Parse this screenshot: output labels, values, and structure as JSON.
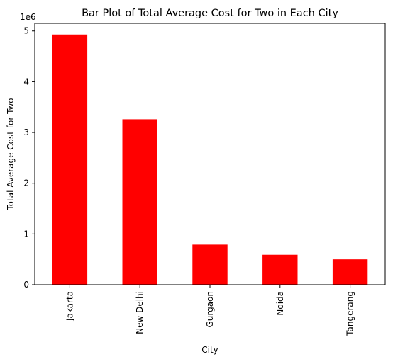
{
  "chart_data": {
    "type": "bar",
    "title": "Bar Plot of Total Average Cost for Two in Each City",
    "xlabel": "City",
    "ylabel": "Total Average Cost for Two",
    "y_offset_label": "1e6",
    "categories": [
      "Jakarta",
      "New Delhi",
      "Gurgaon",
      "Noida",
      "Tangerang"
    ],
    "values": [
      4930000,
      3260000,
      790000,
      590000,
      500000
    ],
    "ylim": [
      0,
      5150000
    ],
    "yticks": [
      0,
      1000000,
      2000000,
      3000000,
      4000000,
      5000000
    ],
    "ytick_labels": [
      "0",
      "1",
      "2",
      "3",
      "4",
      "5"
    ],
    "bar_color": "#ff0000",
    "grid": false,
    "legend": "none"
  }
}
